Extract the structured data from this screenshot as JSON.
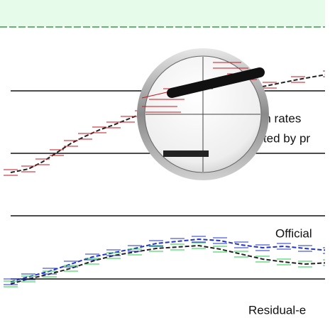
{
  "labels": {
    "upper_line_1": "rth rates",
    "upper_line_2": "ghted by pr",
    "lower_label": "Official",
    "bottom_label": "Residual-e"
  }
}
